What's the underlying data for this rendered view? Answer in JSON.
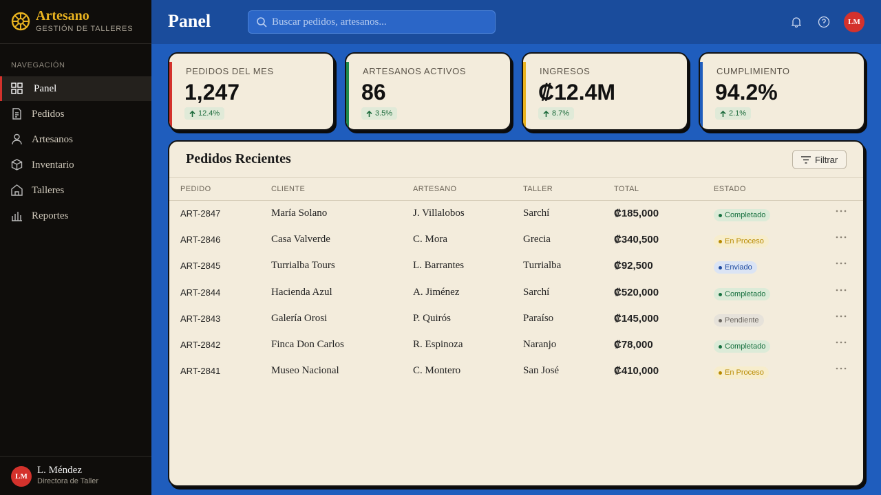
{
  "brand": {
    "name": "Artesano",
    "subtitle": "GESTIÓN DE TALLERES"
  },
  "nav": {
    "heading": "NAVEGACIÓN",
    "items": [
      "Panel",
      "Pedidos",
      "Artesanos",
      "Inventario",
      "Talleres",
      "Reportes"
    ]
  },
  "user": {
    "initials": "LM",
    "name": "L. Méndez",
    "role": "Directora de Taller"
  },
  "header": {
    "title": "Panel",
    "search_placeholder": "Buscar pedidos, artesanos...",
    "avatar": "LM"
  },
  "stats": [
    {
      "label": "PEDIDOS DEL MES",
      "value": "1,247",
      "change": "12.4%"
    },
    {
      "label": "ARTESANOS ACTIVOS",
      "value": "86",
      "change": "3.5%"
    },
    {
      "label": "INGRESOS",
      "value": "₡12.4M",
      "change": "8.7%"
    },
    {
      "label": "CUMPLIMIENTO",
      "value": "94.2%",
      "change": "2.1%"
    }
  ],
  "orders": {
    "title": "Pedidos Recientes",
    "filter": "Filtrar",
    "columns": [
      "PEDIDO",
      "CLIENTE",
      "ARTESANO",
      "TALLER",
      "TOTAL",
      "ESTADO"
    ],
    "rows": [
      [
        "ART-2847",
        "María Solano",
        "J. Villalobos",
        "Sarchí",
        "₡185,000",
        "Completado"
      ],
      [
        "ART-2846",
        "Casa Valverde",
        "C. Mora",
        "Grecia",
        "₡340,500",
        "En Proceso"
      ],
      [
        "ART-2845",
        "Turrialba Tours",
        "L. Barrantes",
        "Turrialba",
        "₡92,500",
        "Enviado"
      ],
      [
        "ART-2844",
        "Hacienda Azul",
        "A. Jiménez",
        "Sarchí",
        "₡520,000",
        "Completado"
      ],
      [
        "ART-2843",
        "Galería Orosi",
        "P. Quirós",
        "Paraíso",
        "₡145,000",
        "Pendiente"
      ],
      [
        "ART-2842",
        "Finca Don Carlos",
        "R. Espinoza",
        "Naranjo",
        "₡78,000",
        "Completado"
      ],
      [
        "ART-2841",
        "Museo Nacional",
        "C. Montero",
        "San José",
        "₡410,000",
        "En Proceso"
      ]
    ]
  }
}
